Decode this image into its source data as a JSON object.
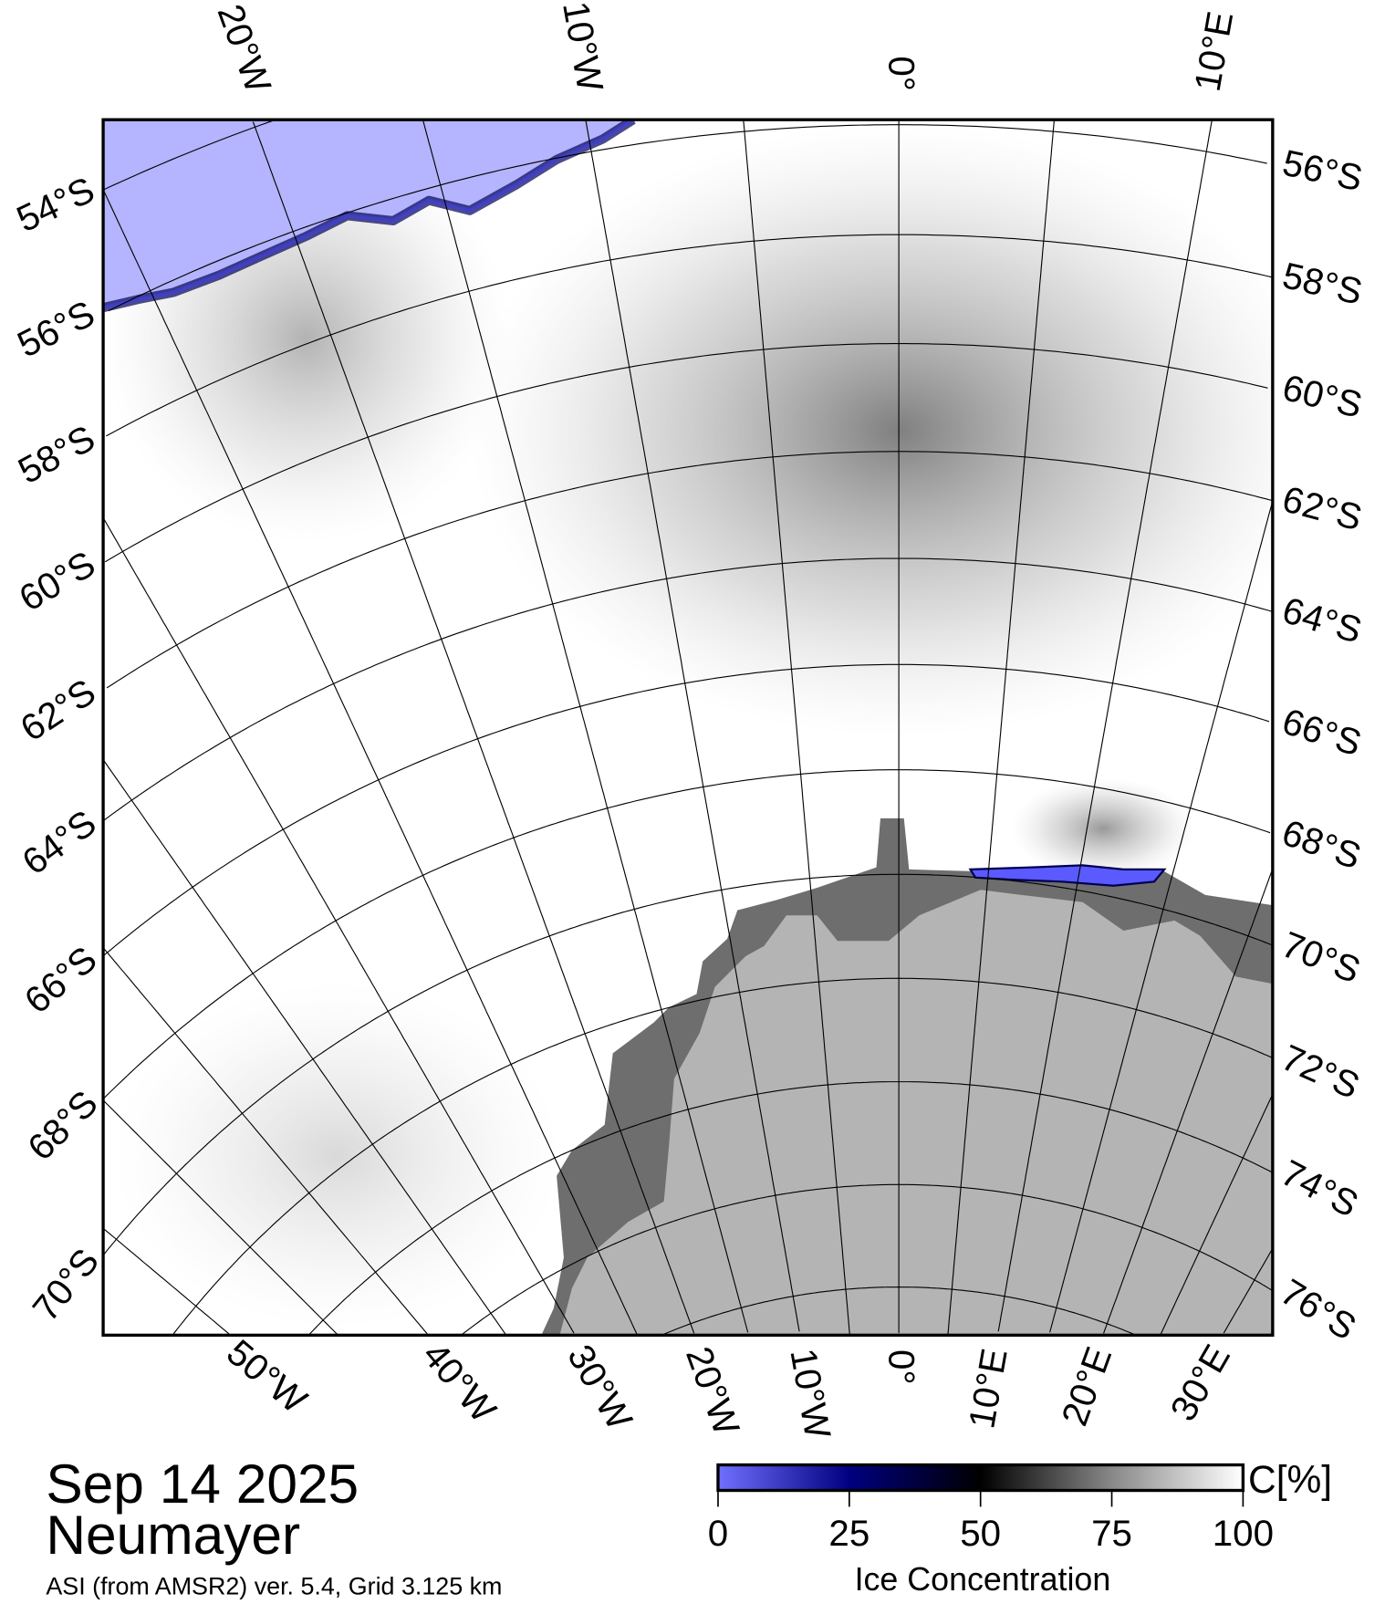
{
  "map": {
    "top_lon_labels": [
      "20°W",
      "10°W",
      "0°",
      "10°E"
    ],
    "bottom_lon_labels": [
      "50°W",
      "40°W",
      "30°W",
      "20°W",
      "10°W",
      "0°",
      "10°E",
      "20°E",
      "30°E"
    ],
    "left_lat_labels": [
      "54°S",
      "56°S",
      "58°S",
      "60°S",
      "62°S",
      "64°S",
      "66°S",
      "68°S",
      "70°S"
    ],
    "right_lat_labels": [
      "56°S",
      "58°S",
      "60°S",
      "62°S",
      "64°S",
      "66°S",
      "68°S",
      "70°S",
      "72°S",
      "74°S",
      "76°S"
    ],
    "colors": {
      "open_water": "#b4b4ff",
      "land_coast": "#6e6e6e",
      "land_interior": "#b4b4b4",
      "ice": "#ffffff"
    }
  },
  "title": {
    "date": "Sep 14 2025",
    "station": "Neumayer",
    "source": "ASI (from AMSR2) ver. 5.4,  Grid 3.125 km"
  },
  "colorbar": {
    "unit": "C[%]",
    "ticks": [
      "0",
      "25",
      "50",
      "75",
      "100"
    ],
    "label": "Ice Concentration",
    "stops": [
      {
        "value": 0,
        "color": "#7070ff"
      },
      {
        "value": 25,
        "color": "#000080"
      },
      {
        "value": 50,
        "color": "#000000"
      },
      {
        "value": 75,
        "color": "#888888"
      },
      {
        "value": 100,
        "color": "#ffffff"
      }
    ]
  }
}
